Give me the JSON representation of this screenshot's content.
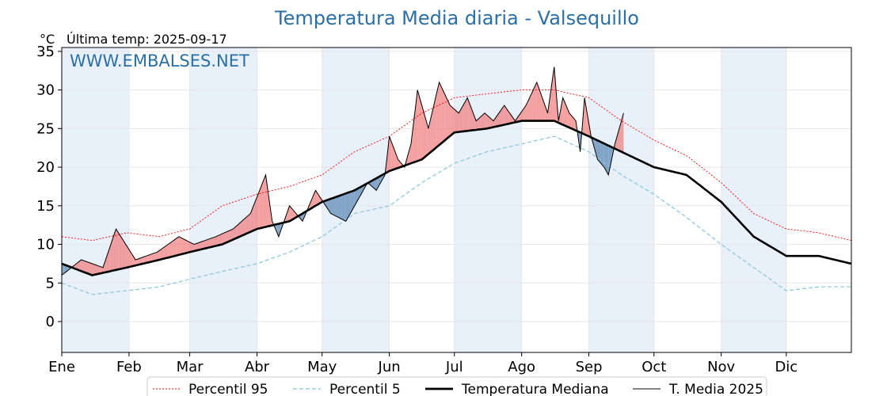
{
  "chart_data": {
    "type": "line",
    "title": "Temperatura Media diaria - Valsequillo",
    "unit_label": "°C",
    "subtitle": "Última temp: 2025-09-17",
    "watermark": "WWW.EMBALSES.NET",
    "ylim": [
      -4,
      35.5
    ],
    "yticks": [
      0,
      5,
      10,
      15,
      20,
      25,
      30,
      35
    ],
    "months": [
      "Ene",
      "Feb",
      "Mar",
      "Abr",
      "May",
      "Jun",
      "Jul",
      "Ago",
      "Sep",
      "Oct",
      "Nov",
      "Dic"
    ],
    "grid": true,
    "legend_position": "bottom",
    "colors": {
      "title": "#2a6fa5",
      "p95": "#ff0000",
      "p5": "#87c6db",
      "median": "#000000",
      "media": "#000000",
      "above": "#f08080",
      "below": "#5f8bb5",
      "band": "#e8f0fa"
    },
    "series": [
      {
        "name": "Percentil 95",
        "style": "dotted-red",
        "x": [
          1,
          15,
          31,
          46,
          60,
          75,
          91,
          106,
          121,
          136,
          152,
          167,
          182,
          197,
          213,
          228,
          244,
          259,
          274,
          289,
          305,
          320,
          335,
          350,
          365
        ],
        "values": [
          11,
          10.5,
          11.5,
          11,
          12,
          15,
          16.5,
          17.5,
          19,
          22,
          24,
          27,
          29,
          29.5,
          30,
          30,
          29,
          26,
          23.5,
          21.5,
          18,
          14,
          12,
          11.5,
          10.5
        ]
      },
      {
        "name": "Percentil 5",
        "style": "dashed-lightblue",
        "x": [
          1,
          15,
          31,
          46,
          60,
          75,
          91,
          106,
          121,
          136,
          152,
          167,
          182,
          197,
          213,
          228,
          244,
          259,
          274,
          289,
          305,
          320,
          335,
          350,
          365
        ],
        "values": [
          5,
          3.5,
          4,
          4.5,
          5.5,
          6.5,
          7.5,
          9,
          11,
          14,
          15,
          18,
          20.5,
          22,
          23,
          24,
          22,
          19,
          16.5,
          13.5,
          10,
          7,
          4,
          4.5,
          4.5
        ]
      },
      {
        "name": "Temperatura Mediana",
        "style": "thick-black",
        "x": [
          1,
          15,
          31,
          46,
          60,
          75,
          91,
          106,
          121,
          136,
          152,
          167,
          182,
          197,
          213,
          228,
          244,
          259,
          274,
          289,
          305,
          320,
          335,
          350,
          365
        ],
        "values": [
          7.5,
          6,
          7,
          8,
          9,
          10,
          12,
          13,
          15.5,
          17,
          19.5,
          21,
          24.5,
          25,
          26,
          26,
          24,
          22,
          20,
          19,
          15.5,
          11,
          8.5,
          8.5,
          7.5
        ]
      },
      {
        "name": "T. Media 2025",
        "style": "thin-black",
        "x": [
          1,
          10,
          20,
          26,
          35,
          45,
          55,
          62,
          72,
          80,
          88,
          95,
          98,
          101,
          106,
          112,
          118,
          125,
          132,
          136,
          142,
          146,
          150,
          152,
          156,
          159,
          162,
          165,
          170,
          175,
          180,
          184,
          188,
          192,
          196,
          200,
          205,
          210,
          215,
          220,
          225,
          228,
          230,
          232,
          235,
          238,
          240,
          242,
          245,
          248,
          251,
          253,
          256,
          259,
          260
        ],
        "values": [
          6,
          8,
          7,
          12,
          8,
          9,
          11,
          10,
          11,
          12,
          14,
          19,
          13,
          11,
          15,
          13,
          17,
          14,
          13,
          15,
          18,
          17,
          19,
          24,
          21,
          20,
          23,
          30,
          25,
          31,
          28,
          27,
          29,
          26,
          27,
          26,
          28,
          26,
          28,
          31,
          27,
          33,
          26,
          29,
          27,
          26,
          22,
          29,
          24,
          21,
          20,
          19,
          23,
          26,
          27
        ]
      }
    ]
  },
  "legend": {
    "items": [
      "Percentil 95",
      "Percentil 5",
      "Temperatura Mediana",
      "T. Media 2025"
    ]
  }
}
